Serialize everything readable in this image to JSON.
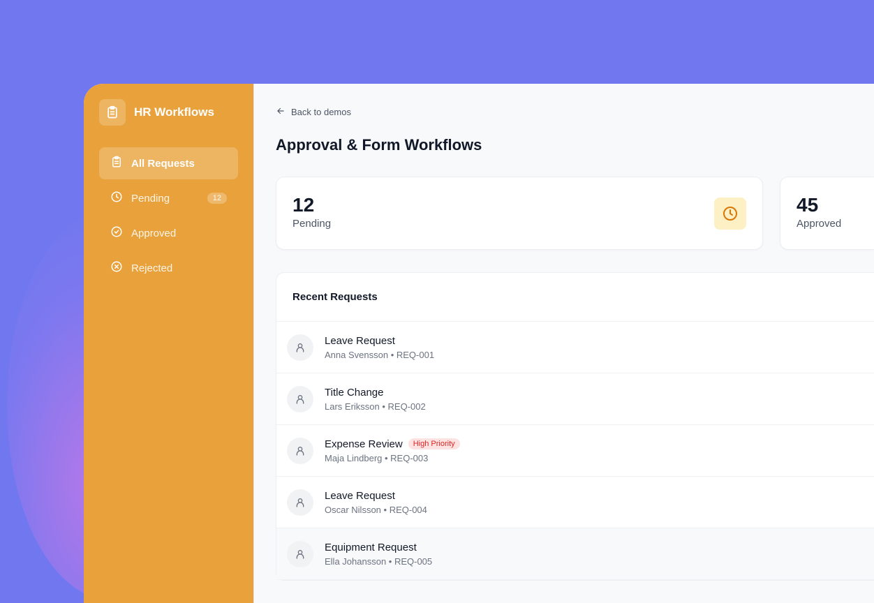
{
  "brand": {
    "name": "HR Workflows"
  },
  "nav": [
    {
      "label": "All Requests",
      "icon": "clipboard-icon",
      "active": true
    },
    {
      "label": "Pending",
      "icon": "clock-icon",
      "badge": "12"
    },
    {
      "label": "Approved",
      "icon": "check-circle-icon"
    },
    {
      "label": "Rejected",
      "icon": "x-circle-icon"
    }
  ],
  "main": {
    "back_label": "Back to demos",
    "title": "Approval & Form Workflows",
    "stats": [
      {
        "value": "12",
        "label": "Pending"
      },
      {
        "value": "45",
        "label": "Approved"
      }
    ],
    "recent": {
      "title": "Recent Requests",
      "rows": [
        {
          "title": "Leave Request",
          "name": "Anna Svensson",
          "id": "REQ-001"
        },
        {
          "title": "Title Change",
          "name": "Lars Eriksson",
          "id": "REQ-002"
        },
        {
          "title": "Expense Review",
          "name": "Maja Lindberg",
          "id": "REQ-003",
          "tag": "High Priority"
        },
        {
          "title": "Leave Request",
          "name": "Oscar Nilsson",
          "id": "REQ-004"
        },
        {
          "title": "Equipment Request",
          "name": "Ella Johansson",
          "id": "REQ-005"
        }
      ]
    }
  },
  "colors": {
    "sidebar": "#e9a23b",
    "background": "#7178ef",
    "priority": "#dc2626"
  }
}
